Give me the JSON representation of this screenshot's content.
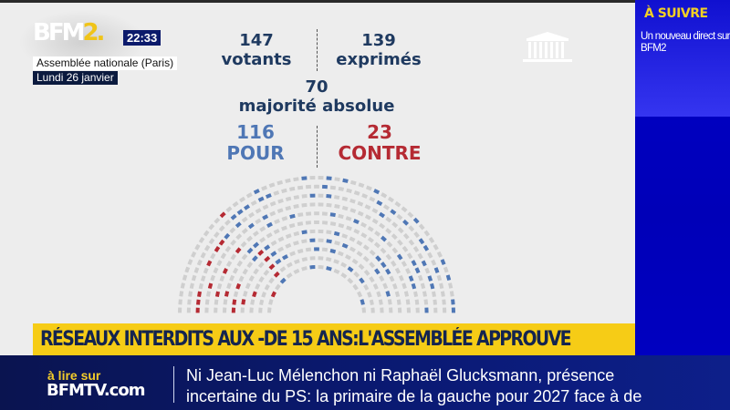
{
  "branding": {
    "logo_main": "BFM",
    "logo_accent": "2.",
    "clock": "22:33"
  },
  "location": {
    "place": "Assemblée nationale (Paris)",
    "date": "Lundi 26 janvier"
  },
  "vote": {
    "votants": {
      "value": "147",
      "label": "votants"
    },
    "exprimes": {
      "value": "139",
      "label": "exprimés"
    },
    "majorite": {
      "value": "70",
      "label": "majorité absolue"
    },
    "pour": {
      "value": "116",
      "label": "POUR"
    },
    "contre": {
      "value": "23",
      "label": "CONTRE"
    }
  },
  "icons": {
    "assembly": "parliament-building-icon"
  },
  "hemicycle": {
    "colors": {
      "empty": "#cfcfcf",
      "pour": "#4f77b5",
      "contre": "#b52a33"
    },
    "rows": 11,
    "pour_seats": 116,
    "contre_seats": 23
  },
  "side_panel": {
    "title": "À SUIVRE",
    "text": "Un nouveau direct sur BFM2"
  },
  "headline": "RÉSEAUX INTERDITS AUX -DE 15 ANS:L'ASSEMBLÉE APPROUVE",
  "ticker": {
    "prefix": "à lire sur",
    "site": "BFMTV.com",
    "line1": "Ni Jean-Luc Mélenchon ni Raphaël Glucksmann, présence",
    "line2": "incertaine du PS: la primaire de la gauche pour 2027 face à de"
  }
}
